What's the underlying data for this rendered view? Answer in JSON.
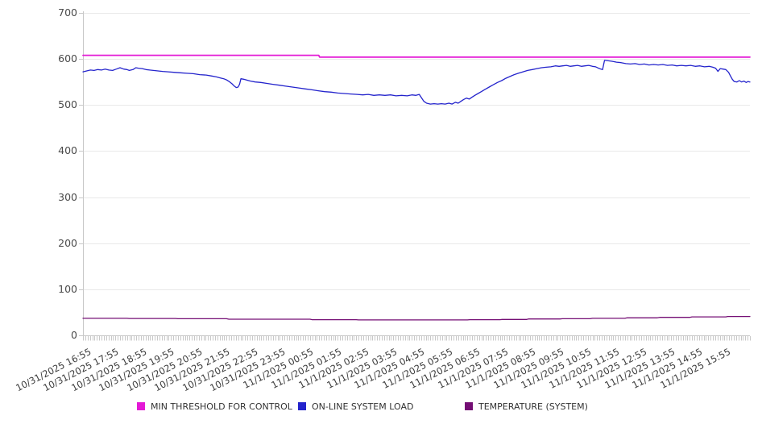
{
  "page": {
    "background": "#ffffff"
  },
  "colors": {
    "grid": "#e9e9e9",
    "axis": "#c8c8c8",
    "tick": "#c8c8c8",
    "y_label_text": "#4a4a4a",
    "x_label_text": "#3d3d3d",
    "legend_text": "#333333"
  },
  "chart_data": {
    "type": "line",
    "title": "",
    "grid": {
      "horizontal": true,
      "vertical": false
    },
    "y_axis": {
      "min": 0,
      "max": 700,
      "tick_interval": 100,
      "tick_labels": [
        "0",
        "100",
        "200",
        "300",
        "400",
        "500",
        "600",
        "700"
      ]
    },
    "x_axis": {
      "total_minutes": 1440,
      "label_interval_minutes": 60,
      "minor_tick_minutes": 5,
      "label_rotation_deg": -27,
      "tick_labels": [
        "10/31/2025 16:55",
        "10/31/2025 17:55",
        "10/31/2025 18:55",
        "10/31/2025 19:55",
        "10/31/2025 20:55",
        "10/31/2025 21:55",
        "10/31/2025 22:55",
        "10/31/2025 23:55",
        "11/1/2025 00:55",
        "11/1/2025 01:55",
        "11/1/2025 02:55",
        "11/1/2025 03:55",
        "11/1/2025 04:55",
        "11/1/2025 05:55",
        "11/1/2025 06:55",
        "11/1/2025 07:55",
        "11/1/2025 08:55",
        "11/1/2025 09:55",
        "11/1/2025 10:55",
        "11/1/2025 11:55",
        "11/1/2025 12:55",
        "11/1/2025 13:55",
        "11/1/2025 14:55",
        "11/1/2025 15:55"
      ]
    },
    "legend": {
      "position": "bottom",
      "items": [
        "MIN THRESHOLD FOR CONTROL",
        "ON-LINE SYSTEM LOAD",
        "TEMPERATURE (SYSTEM)"
      ]
    },
    "series": [
      {
        "name": "MIN THRESHOLD FOR CONTROL",
        "color": "#e419d6",
        "stroke_width": 1.8,
        "points": [
          [
            0,
            608
          ],
          [
            509,
            608
          ],
          [
            511,
            604
          ],
          [
            1440,
            604
          ]
        ]
      },
      {
        "name": "ON-LINE SYSTEM LOAD",
        "color": "#2424cc",
        "stroke_width": 1.3,
        "points": [
          [
            0,
            572
          ],
          [
            8,
            574
          ],
          [
            16,
            576
          ],
          [
            24,
            575
          ],
          [
            32,
            577
          ],
          [
            40,
            576
          ],
          [
            48,
            578
          ],
          [
            56,
            576
          ],
          [
            64,
            575
          ],
          [
            72,
            578
          ],
          [
            80,
            581
          ],
          [
            88,
            578
          ],
          [
            95,
            577
          ],
          [
            100,
            575
          ],
          [
            108,
            577
          ],
          [
            114,
            581
          ],
          [
            120,
            580
          ],
          [
            128,
            579
          ],
          [
            136,
            577
          ],
          [
            144,
            576
          ],
          [
            152,
            575
          ],
          [
            162,
            574
          ],
          [
            172,
            573
          ],
          [
            184,
            572
          ],
          [
            196,
            571
          ],
          [
            210,
            570
          ],
          [
            224,
            569
          ],
          [
            238,
            568
          ],
          [
            252,
            566
          ],
          [
            266,
            565
          ],
          [
            278,
            563
          ],
          [
            288,
            561
          ],
          [
            296,
            559
          ],
          [
            304,
            557
          ],
          [
            311,
            554
          ],
          [
            317,
            550
          ],
          [
            322,
            546
          ],
          [
            327,
            541
          ],
          [
            331,
            538
          ],
          [
            335,
            539
          ],
          [
            338,
            545
          ],
          [
            341,
            557
          ],
          [
            347,
            556
          ],
          [
            354,
            554
          ],
          [
            362,
            552
          ],
          [
            372,
            550
          ],
          [
            384,
            549
          ],
          [
            396,
            547
          ],
          [
            410,
            545
          ],
          [
            424,
            543
          ],
          [
            438,
            541
          ],
          [
            452,
            539
          ],
          [
            466,
            537
          ],
          [
            480,
            535
          ],
          [
            494,
            533
          ],
          [
            508,
            531
          ],
          [
            522,
            529
          ],
          [
            536,
            528
          ],
          [
            550,
            526
          ],
          [
            564,
            525
          ],
          [
            578,
            524
          ],
          [
            592,
            523
          ],
          [
            604,
            522
          ],
          [
            616,
            523
          ],
          [
            628,
            521
          ],
          [
            640,
            522
          ],
          [
            652,
            521
          ],
          [
            664,
            522
          ],
          [
            676,
            520
          ],
          [
            688,
            521
          ],
          [
            700,
            520
          ],
          [
            710,
            522
          ],
          [
            719,
            521
          ],
          [
            726,
            523
          ],
          [
            730,
            517
          ],
          [
            736,
            508
          ],
          [
            742,
            504
          ],
          [
            750,
            502
          ],
          [
            758,
            503
          ],
          [
            766,
            502
          ],
          [
            774,
            503
          ],
          [
            782,
            502
          ],
          [
            790,
            504
          ],
          [
            797,
            502
          ],
          [
            804,
            506
          ],
          [
            810,
            504
          ],
          [
            816,
            508
          ],
          [
            822,
            512
          ],
          [
            828,
            515
          ],
          [
            834,
            513
          ],
          [
            840,
            517
          ],
          [
            846,
            521
          ],
          [
            853,
            525
          ],
          [
            860,
            529
          ],
          [
            868,
            534
          ],
          [
            877,
            539
          ],
          [
            886,
            544
          ],
          [
            895,
            549
          ],
          [
            904,
            553
          ],
          [
            913,
            558
          ],
          [
            922,
            562
          ],
          [
            931,
            566
          ],
          [
            940,
            569
          ],
          [
            950,
            572
          ],
          [
            960,
            575
          ],
          [
            970,
            577
          ],
          [
            980,
            579
          ],
          [
            990,
            581
          ],
          [
            1000,
            582
          ],
          [
            1010,
            583
          ],
          [
            1020,
            585
          ],
          [
            1028,
            584
          ],
          [
            1036,
            585
          ],
          [
            1044,
            586
          ],
          [
            1052,
            584
          ],
          [
            1060,
            585
          ],
          [
            1068,
            586
          ],
          [
            1076,
            584
          ],
          [
            1084,
            585
          ],
          [
            1092,
            586
          ],
          [
            1100,
            584
          ],
          [
            1107,
            583
          ],
          [
            1113,
            580
          ],
          [
            1118,
            578
          ],
          [
            1122,
            577
          ],
          [
            1126,
            597
          ],
          [
            1134,
            596
          ],
          [
            1142,
            595
          ],
          [
            1152,
            593
          ],
          [
            1162,
            592
          ],
          [
            1172,
            590
          ],
          [
            1182,
            589
          ],
          [
            1192,
            590
          ],
          [
            1202,
            588
          ],
          [
            1212,
            589
          ],
          [
            1222,
            587
          ],
          [
            1232,
            588
          ],
          [
            1242,
            587
          ],
          [
            1252,
            588
          ],
          [
            1262,
            586
          ],
          [
            1272,
            587
          ],
          [
            1282,
            585
          ],
          [
            1292,
            586
          ],
          [
            1302,
            585
          ],
          [
            1312,
            586
          ],
          [
            1322,
            584
          ],
          [
            1332,
            585
          ],
          [
            1342,
            583
          ],
          [
            1352,
            584
          ],
          [
            1360,
            582
          ],
          [
            1366,
            580
          ],
          [
            1371,
            573
          ],
          [
            1376,
            579
          ],
          [
            1382,
            578
          ],
          [
            1388,
            577
          ],
          [
            1394,
            571
          ],
          [
            1398,
            563
          ],
          [
            1402,
            556
          ],
          [
            1406,
            551
          ],
          [
            1412,
            550
          ],
          [
            1417,
            553
          ],
          [
            1422,
            550
          ],
          [
            1427,
            552
          ],
          [
            1432,
            549
          ],
          [
            1436,
            551
          ],
          [
            1440,
            550
          ]
        ]
      },
      {
        "name": "TEMPERATURE (SYSTEM)",
        "color": "#740e74",
        "stroke_width": 1.3,
        "points": [
          [
            0,
            37
          ],
          [
            95,
            37
          ],
          [
            100,
            36.5
          ],
          [
            200,
            36.5
          ],
          [
            205,
            36
          ],
          [
            310,
            36
          ],
          [
            315,
            35
          ],
          [
            490,
            35
          ],
          [
            495,
            34
          ],
          [
            590,
            34
          ],
          [
            595,
            33.5
          ],
          [
            830,
            33.5
          ],
          [
            835,
            34
          ],
          [
            900,
            34
          ],
          [
            905,
            34.5
          ],
          [
            958,
            34.5
          ],
          [
            962,
            35.5
          ],
          [
            1030,
            35.5
          ],
          [
            1035,
            36
          ],
          [
            1095,
            36
          ],
          [
            1100,
            37
          ],
          [
            1170,
            37
          ],
          [
            1175,
            38
          ],
          [
            1240,
            38
          ],
          [
            1245,
            39
          ],
          [
            1310,
            39
          ],
          [
            1315,
            40
          ],
          [
            1388,
            40
          ],
          [
            1392,
            41
          ],
          [
            1440,
            41
          ]
        ]
      }
    ]
  }
}
